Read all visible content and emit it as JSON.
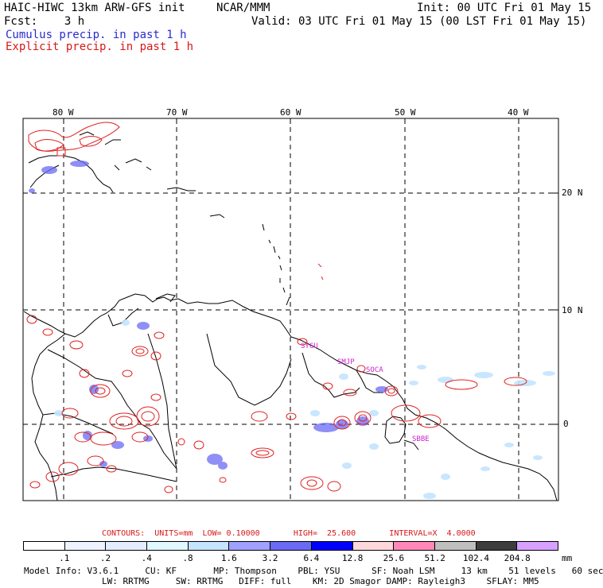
{
  "header": {
    "title_left": "HAIC-HIWC 13km ARW-GFS init",
    "title_center": "NCAR/MMM",
    "init": "Init: 00 UTC Fri 01 May 15",
    "fcst": "Fcst:    3 h",
    "valid": "Valid: 03 UTC Fri 01 May 15 (00 LST Fri 01 May 15)",
    "legend_cumulus": "Cumulus precip. in past 1 h",
    "legend_explicit": "Explicit precip. in past 1 h",
    "cumulus_color": "#6a6af5",
    "explicit_color": "#e02020"
  },
  "map": {
    "lon_labels": [
      "80 W",
      "70 W",
      "60 W",
      "50 W",
      "40 W"
    ],
    "lat_labels": [
      "20 N",
      "10 N",
      "0"
    ],
    "stations": [
      "SYGU",
      "SMJP",
      "SOCA",
      "SBBE"
    ],
    "station_color": "#cc22cc"
  },
  "contours": {
    "label": "CONTOURS:",
    "units": "UNITS=mm",
    "low": "LOW= 0.10000",
    "high": "HIGH=  25.600",
    "interval": "INTERVAL=X  4.0000"
  },
  "colorbar": {
    "unit": "mm",
    "labels": [
      ".1",
      ".2",
      ".4",
      ".8",
      "1.6",
      "3.2",
      "6.4",
      "12.8",
      "25.6",
      "51.2",
      "102.4",
      "204.8"
    ],
    "colors": [
      "#ffffff",
      "#eef3ff",
      "#e4ecff",
      "#e0f8ff",
      "#c4e4ff",
      "#a0a0ff",
      "#6a6af5",
      "#0000ff",
      "#ffd8dc",
      "#ff88b8",
      "#bfbfbf",
      "#3d3d3d",
      "#d8a0ff"
    ]
  },
  "model_info": {
    "line1": "Model Info: V3.6.1     CU: KF       MP: Thompson    PBL: YSU      SF: Noah LSM     13 km    51 levels   60 sec",
    "line2": "LW: RRTMG     SW: RRTMG   DIFF: full    KM: 2D Smagor DAMP: Rayleigh3    SFLAY: MM5"
  }
}
